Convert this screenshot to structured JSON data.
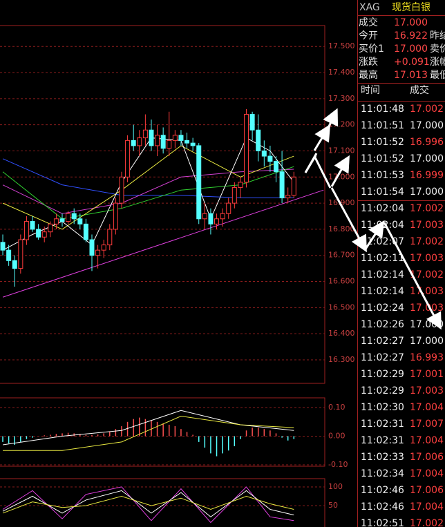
{
  "chart_data": [
    {
      "type": "candlestick",
      "xlim": [
        -0.47,
        54.2
      ],
      "ylim": [
        16.21,
        17.58
      ],
      "yticks": [
        {
          "value": 17.5,
          "label": "17.500"
        },
        {
          "value": 17.4,
          "label": "17.400"
        },
        {
          "value": 17.3,
          "label": "17.300"
        },
        {
          "value": 17.2,
          "label": "17.200"
        },
        {
          "value": 17.1,
          "label": "17.100"
        },
        {
          "value": 17.0,
          "label": "17.000"
        },
        {
          "value": 16.9,
          "label": "16.900"
        },
        {
          "value": 16.8,
          "label": "16.800"
        },
        {
          "value": 16.7,
          "label": "16.700"
        },
        {
          "value": 16.6,
          "label": "16.600"
        },
        {
          "value": 16.5,
          "label": "16.500"
        },
        {
          "value": 16.4,
          "label": "16.400"
        },
        {
          "value": 16.3,
          "label": "16.300"
        }
      ],
      "grid": true,
      "up_color": "#ff3c3c",
      "down_color": "#54ffff",
      "candles": [
        [
          16.75,
          16.78,
          16.7,
          16.72
        ],
        [
          16.72,
          16.74,
          16.66,
          16.68
        ],
        [
          16.68,
          16.7,
          16.58,
          16.65
        ],
        [
          16.65,
          16.78,
          16.63,
          16.76
        ],
        [
          16.76,
          16.85,
          16.74,
          16.83
        ],
        [
          16.83,
          16.85,
          16.79,
          16.8
        ],
        [
          16.8,
          16.82,
          16.76,
          16.77
        ],
        [
          16.77,
          16.81,
          16.75,
          16.79
        ],
        [
          16.79,
          16.83,
          16.77,
          16.82
        ],
        [
          16.82,
          16.86,
          16.8,
          16.84
        ],
        [
          16.84,
          16.86,
          16.81,
          16.83
        ],
        [
          16.83,
          16.87,
          16.82,
          16.86
        ],
        [
          16.86,
          16.88,
          16.82,
          16.84
        ],
        [
          16.84,
          16.86,
          16.8,
          16.82
        ],
        [
          16.82,
          16.84,
          16.75,
          16.76
        ],
        [
          16.76,
          16.78,
          16.64,
          16.7
        ],
        [
          16.7,
          16.74,
          16.65,
          16.72
        ],
        [
          16.72,
          16.76,
          16.69,
          16.74
        ],
        [
          16.74,
          16.82,
          16.72,
          16.8
        ],
        [
          16.8,
          16.92,
          16.78,
          16.9
        ],
        [
          16.9,
          17.02,
          16.88,
          17.0
        ],
        [
          17.0,
          17.16,
          16.98,
          17.14
        ],
        [
          17.14,
          17.2,
          17.1,
          17.12
        ],
        [
          17.12,
          17.18,
          17.08,
          17.15
        ],
        [
          17.15,
          17.24,
          17.12,
          17.18
        ],
        [
          17.18,
          17.22,
          17.1,
          17.12
        ],
        [
          17.12,
          17.2,
          17.08,
          17.16
        ],
        [
          17.16,
          17.19,
          17.09,
          17.11
        ],
        [
          17.11,
          17.25,
          17.08,
          17.14
        ],
        [
          17.14,
          17.18,
          17.11,
          17.16
        ],
        [
          17.16,
          17.18,
          17.12,
          17.14
        ],
        [
          17.14,
          17.17,
          17.11,
          17.13
        ],
        [
          17.13,
          17.15,
          17.1,
          17.12
        ],
        [
          17.12,
          17.13,
          16.82,
          16.84
        ],
        [
          16.84,
          16.9,
          16.8,
          16.86
        ],
        [
          16.86,
          16.88,
          16.78,
          16.82
        ],
        [
          16.82,
          16.86,
          16.8,
          16.84
        ],
        [
          16.84,
          16.88,
          16.81,
          16.86
        ],
        [
          16.86,
          16.92,
          16.84,
          16.9
        ],
        [
          16.9,
          16.98,
          16.88,
          16.96
        ],
        [
          16.96,
          17.0,
          16.92,
          16.98
        ],
        [
          16.98,
          17.26,
          16.96,
          17.24
        ],
        [
          17.24,
          17.25,
          17.14,
          17.18
        ],
        [
          17.18,
          17.24,
          17.06,
          17.1
        ],
        [
          17.1,
          17.14,
          17.04,
          17.08
        ],
        [
          17.08,
          17.12,
          17.02,
          17.06
        ],
        [
          17.06,
          17.08,
          16.98,
          17.02
        ],
        [
          17.02,
          17.1,
          16.9,
          16.92
        ],
        [
          16.92,
          16.96,
          16.9,
          16.93
        ],
        [
          16.93,
          17.02,
          16.92,
          17.0
        ]
      ],
      "lines": [
        {
          "color": "#3050ff",
          "x": [
            0,
            10,
            20,
            30,
            40,
            49
          ],
          "values": [
            17.07,
            16.97,
            16.93,
            16.93,
            16.92,
            16.92
          ]
        },
        {
          "color": "#d040d0",
          "x": [
            0,
            10,
            20,
            30,
            40,
            49
          ],
          "values": [
            16.97,
            16.86,
            16.9,
            17.0,
            17.02,
            17.03
          ]
        },
        {
          "color": "#30d030",
          "x": [
            0,
            10,
            20,
            30,
            40,
            49
          ],
          "values": [
            17.02,
            16.84,
            16.88,
            16.95,
            16.97,
            17.04
          ]
        },
        {
          "color": "#e8e840",
          "x": [
            0,
            10,
            20,
            30,
            40,
            49
          ],
          "values": [
            16.9,
            16.8,
            16.95,
            17.12,
            17.0,
            17.08
          ]
        },
        {
          "color": "#ffffff",
          "x": [
            0,
            5,
            10,
            15,
            20,
            25,
            30,
            35,
            41,
            45,
            49
          ],
          "values": [
            16.72,
            16.78,
            16.83,
            16.74,
            16.98,
            17.15,
            17.14,
            16.84,
            17.15,
            17.1,
            16.98
          ]
        },
        {
          "color": "#e040e0",
          "x": [
            0,
            54
          ],
          "values": [
            16.54,
            16.95
          ]
        }
      ]
    },
    {
      "type": "bar",
      "xlim": [
        -0.47,
        54.2
      ],
      "ylim": [
        -0.1,
        0.134
      ],
      "yticks": [
        {
          "value": 0.1,
          "label": "0.10"
        },
        {
          "value": 0.0,
          "label": "0.00"
        },
        {
          "value": -0.1,
          "label": "-0.10"
        }
      ],
      "up_color": "#ff5050",
      "down_color": "#54ffff",
      "values": [
        -0.02,
        -0.025,
        -0.03,
        -0.02,
        -0.01,
        -0.005,
        0,
        0.003,
        0.005,
        0.008,
        0.01,
        0.012,
        0.01,
        0.008,
        0.005,
        0.004,
        0.006,
        0.01,
        0.015,
        0.025,
        0.035,
        0.05,
        0.06,
        0.065,
        0.06,
        0.055,
        0.05,
        0.045,
        0.04,
        0.035,
        0.025,
        0.015,
        0.005,
        -0.02,
        -0.04,
        -0.06,
        -0.07,
        -0.06,
        -0.05,
        -0.035,
        -0.01,
        0.02,
        0.03,
        0.03,
        0.025,
        0.02,
        0.01,
        -0.005,
        -0.015,
        -0.01
      ],
      "lines": [
        {
          "color": "#ffffff",
          "x": [
            0,
            10,
            20,
            30,
            40,
            49
          ],
          "values": [
            -0.03,
            0.0,
            0.02,
            0.09,
            0.04,
            0.02
          ]
        },
        {
          "color": "#e8e840",
          "x": [
            0,
            10,
            20,
            30,
            40,
            49
          ],
          "values": [
            -0.05,
            -0.05,
            -0.02,
            0.07,
            0.04,
            0.03
          ]
        }
      ]
    },
    {
      "type": "line",
      "xlim": [
        -0.47,
        54.2
      ],
      "ylim": [
        -7,
        122
      ],
      "yticks": [
        100,
        50
      ],
      "lines": [
        {
          "color": "#e040e0",
          "x": [
            0,
            5,
            10,
            14,
            20,
            25,
            30,
            35,
            41,
            45,
            49
          ],
          "values": [
            40,
            90,
            15,
            80,
            100,
            10,
            95,
            5,
            100,
            20,
            10
          ]
        },
        {
          "color": "#ffffff",
          "x": [
            0,
            5,
            10,
            14,
            20,
            25,
            30,
            35,
            41,
            45,
            49
          ],
          "values": [
            35,
            75,
            30,
            65,
            90,
            30,
            85,
            20,
            90,
            40,
            25
          ]
        },
        {
          "color": "#e8e840",
          "x": [
            0,
            5,
            10,
            14,
            20,
            25,
            30,
            35,
            41,
            45,
            49
          ],
          "values": [
            30,
            60,
            45,
            50,
            75,
            50,
            70,
            40,
            75,
            55,
            40
          ]
        }
      ]
    }
  ],
  "quote": {
    "symbol": "XAG",
    "name": "现货白银",
    "rows": [
      {
        "label": "成交",
        "value": "17.000",
        "extra": ""
      },
      {
        "label": "今开",
        "value": "16.922",
        "extra": "昨结"
      },
      {
        "label": "买价1",
        "value": "17.000",
        "extra": "卖价"
      },
      {
        "label": "涨跌",
        "value": "+0.091",
        "extra": "涨幅"
      },
      {
        "label": "最高",
        "value": "17.013",
        "extra": "最低"
      }
    ]
  },
  "trades": {
    "headers": [
      "时间",
      "成交"
    ],
    "rows": [
      [
        "11:01:48",
        "17.002"
      ],
      [
        "11:01:51",
        "17.000"
      ],
      [
        "11:01:52",
        "16.996"
      ],
      [
        "11:01:52",
        "17.000"
      ],
      [
        "11:01:53",
        "16.999"
      ],
      [
        "11:01:54",
        "17.000"
      ],
      [
        "11:02:04",
        "17.002"
      ],
      [
        "11:02:04",
        "17.003"
      ],
      [
        "11:02:07",
        "17.002"
      ],
      [
        "11:02:11",
        "17.003"
      ],
      [
        "11:02:14",
        "17.002"
      ],
      [
        "11:02:14",
        "17.003"
      ],
      [
        "11:02:24",
        "17.003"
      ],
      [
        "11:02:26",
        "17.000"
      ],
      [
        "11:02:27",
        "17.000"
      ],
      [
        "11:02:27",
        "16.993"
      ],
      [
        "11:02:29",
        "17.001"
      ],
      [
        "11:02:29",
        "17.003"
      ],
      [
        "11:02:30",
        "17.004"
      ],
      [
        "11:02:31",
        "17.007"
      ],
      [
        "11:02:31",
        "17.004"
      ],
      [
        "11:02:33",
        "17.006"
      ],
      [
        "11:02:34",
        "17.004"
      ],
      [
        "11:02:46",
        "17.006"
      ],
      [
        "11:02:46",
        "17.004"
      ],
      [
        "11:02:51",
        "17.002"
      ]
    ]
  }
}
